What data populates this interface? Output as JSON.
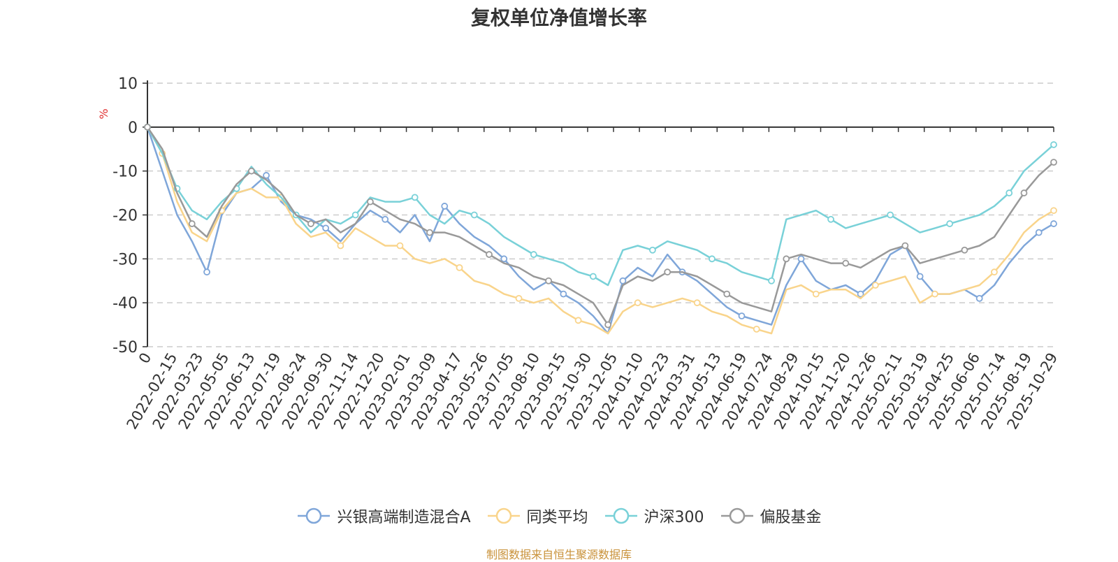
{
  "chart_data": {
    "type": "line",
    "title": "复权单位净值增长率",
    "ylabel": "%",
    "xlabel": "",
    "ylim": [
      -50,
      10
    ],
    "yticks": [
      10,
      0,
      -10,
      -20,
      -30,
      -40,
      -50
    ],
    "grid": true,
    "legend_position": "bottom",
    "x_ticks": [
      "0",
      "2022-02-15",
      "2022-03-23",
      "2022-05-05",
      "2022-06-13",
      "2022-07-19",
      "2022-08-24",
      "2022-09-30",
      "2022-11-14",
      "2022-12-20",
      "2023-02-01",
      "2023-03-09",
      "2023-04-17",
      "2023-05-26",
      "2023-07-05",
      "2023-08-10",
      "2023-09-15",
      "2023-10-30",
      "2023-12-05",
      "2024-01-10",
      "2024-02-23",
      "2024-03-31",
      "2024-05-13",
      "2024-06-19",
      "2024-07-24",
      "2024-08-29",
      "2024-10-15",
      "2024-11-20",
      "2024-12-26",
      "2025-02-11",
      "2025-03-19",
      "2025-04-25",
      "2025-06-06",
      "2025-07-14",
      "2025-08-19",
      "2025-10-29"
    ],
    "series": [
      {
        "name": "兴银高端制造混合A",
        "color": "#7fa6d9",
        "values": [
          0,
          -10,
          -20,
          -26,
          -33,
          -20,
          -15,
          -14,
          -11,
          -17,
          -20,
          -21,
          -23,
          -26,
          -22,
          -19,
          -21,
          -24,
          -20,
          -26,
          -18,
          -22,
          -25,
          -27,
          -30,
          -34,
          -37,
          -35,
          -38,
          -40,
          -43,
          -47,
          -35,
          -32,
          -34,
          -29,
          -33,
          -35,
          -38,
          -41,
          -43,
          -44,
          -45,
          -36,
          -30,
          -35,
          -37,
          -36,
          -38,
          -35,
          -29,
          -27,
          -34,
          -38,
          -38,
          -37,
          -39,
          -36,
          -31,
          -27,
          -24,
          -22
        ]
      },
      {
        "name": "同类平均",
        "color": "#f9d48b",
        "values": [
          0,
          -6,
          -17,
          -24,
          -26,
          -19,
          -15,
          -14,
          -16,
          -16,
          -22,
          -25,
          -24,
          -27,
          -23,
          -25,
          -27,
          -27,
          -30,
          -31,
          -30,
          -32,
          -35,
          -36,
          -38,
          -39,
          -40,
          -39,
          -42,
          -44,
          -45,
          -47,
          -42,
          -40,
          -41,
          -40,
          -39,
          -40,
          -42,
          -43,
          -45,
          -46,
          -47,
          -37,
          -36,
          -38,
          -37,
          -37,
          -39,
          -36,
          -35,
          -34,
          -40,
          -38,
          -38,
          -37,
          -36,
          -33,
          -29,
          -24,
          -21,
          -19
        ]
      },
      {
        "name": "沪深300",
        "color": "#79d1d8",
        "values": [
          0,
          -6,
          -14,
          -19,
          -21,
          -17,
          -14,
          -9,
          -13,
          -16,
          -20,
          -24,
          -21,
          -22,
          -20,
          -16,
          -17,
          -17,
          -16,
          -20,
          -22,
          -19,
          -20,
          -22,
          -25,
          -27,
          -29,
          -30,
          -31,
          -33,
          -34,
          -36,
          -28,
          -27,
          -28,
          -26,
          -27,
          -28,
          -30,
          -31,
          -33,
          -34,
          -35,
          -21,
          -20,
          -19,
          -21,
          -23,
          -22,
          -21,
          -20,
          -22,
          -24,
          -23,
          -22,
          -21,
          -20,
          -18,
          -15,
          -10,
          -7,
          -4
        ]
      },
      {
        "name": "偏股基金",
        "color": "#999999",
        "values": [
          0,
          -5,
          -15,
          -22,
          -25,
          -18,
          -13,
          -10,
          -12,
          -15,
          -20,
          -22,
          -21,
          -24,
          -22,
          -17,
          -19,
          -21,
          -22,
          -24,
          -24,
          -25,
          -27,
          -29,
          -31,
          -32,
          -34,
          -35,
          -36,
          -38,
          -40,
          -45,
          -36,
          -34,
          -35,
          -33,
          -33,
          -34,
          -36,
          -38,
          -40,
          -41,
          -42,
          -30,
          -29,
          -30,
          -31,
          -31,
          -32,
          -30,
          -28,
          -27,
          -31,
          -30,
          -29,
          -28,
          -27,
          -25,
          -20,
          -15,
          -11,
          -8
        ]
      }
    ]
  },
  "source_text": "制图数据来自恒生聚源数据库"
}
